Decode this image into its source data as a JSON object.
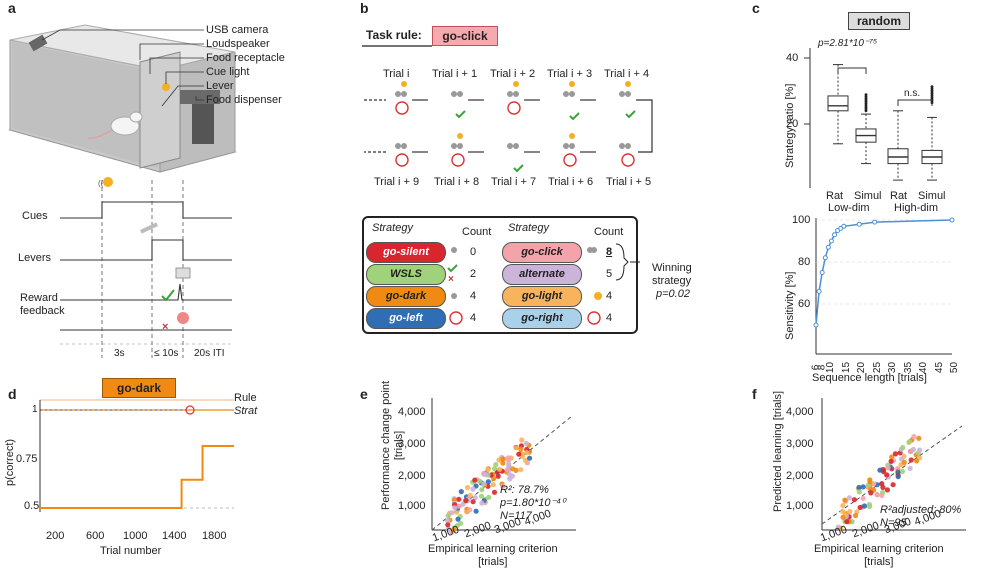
{
  "panel_labels": [
    "a",
    "b",
    "c",
    "d",
    "e",
    "f"
  ],
  "panel_a": {
    "apparatus_labels": [
      "USB camera",
      "Loudspeaker",
      "Food receptacle",
      "Cue light",
      "Lever",
      "Food dispenser"
    ],
    "timeline_labels": [
      "Cues",
      "Levers",
      "Reward",
      "feedback"
    ],
    "durations": [
      "3s",
      "≤ 10s",
      "20s ITI"
    ]
  },
  "panel_b": {
    "task_rule_label": "Task rule:",
    "task_rule": "go-click",
    "trials_top": [
      "Trial i",
      "Trial i + 1",
      "Trial i + 2",
      "Trial i + 3",
      "Trial i + 4"
    ],
    "trials_bottom": [
      "Trial i + 9",
      "Trial i + 8",
      "Trial i + 7",
      "Trial i + 6",
      "Trial i + 5"
    ],
    "legend": {
      "strategy_header": "Strategy",
      "count_header": "Count",
      "left": [
        {
          "name": "go-silent",
          "count": "0",
          "color": "#d9262e"
        },
        {
          "name": "WSLS",
          "count": "2",
          "color": "#9fd27a"
        },
        {
          "name": "go-dark",
          "count": "4",
          "color": "#f08a12"
        },
        {
          "name": "go-left",
          "count": "4",
          "color": "#2f6db5"
        }
      ],
      "right": [
        {
          "name": "go-click",
          "count": "8",
          "color": "#f5a3aa"
        },
        {
          "name": "alternate",
          "count": "5",
          "color": "#cbb3da"
        },
        {
          "name": "go-light",
          "count": "4",
          "color": "#f8b45c"
        },
        {
          "name": "go-right",
          "count": "4",
          "color": "#a9d2ea"
        }
      ],
      "winning_label": [
        "Winning",
        "strategy"
      ],
      "winning_p": "p=0.02"
    }
  },
  "panel_c": {
    "title": "random",
    "box": {
      "ylabel": "Strategy ratio [%]",
      "yticks": [
        "40",
        "20"
      ],
      "pvalue": "p=2.81*10⁻⁷⁵",
      "ns": "n.s.",
      "groups": [
        "Rat",
        "Simul",
        "Rat",
        "Simul"
      ],
      "group_labels": [
        "Low-dim",
        "High-dim"
      ],
      "boxes": [
        {
          "q1": 24,
          "median": 25.5,
          "q3": 28.5,
          "whisker_low": 14,
          "whisker_high": 38
        },
        {
          "q1": 14.5,
          "median": 16.5,
          "q3": 18.5,
          "whisker_low": 8,
          "whisker_high": 23
        },
        {
          "q1": 8,
          "median": 10,
          "q3": 12.5,
          "whisker_low": 3,
          "whisker_high": 24
        },
        {
          "q1": 8,
          "median": 10,
          "q3": 12,
          "whisker_low": 3,
          "whisker_high": 22
        }
      ]
    },
    "sensitivity": {
      "ylabel": "Sensitivity [%]",
      "xlabel": "Sequence length [trials]",
      "yticks": [
        "100",
        "80",
        "60"
      ],
      "xticks": [
        "6",
        "8",
        "10",
        "15",
        "20",
        "25",
        "30",
        "35",
        "40",
        "45",
        "50"
      ]
    }
  },
  "panel_d": {
    "title": "go-dark",
    "legend": [
      "Rule",
      "Strat"
    ],
    "ylabel": "p(correct)",
    "xlabel": "Trial number",
    "yticks": [
      "0.75",
      "0.5"
    ],
    "xticks": [
      "200",
      "600",
      "1000",
      "1400",
      "1800"
    ],
    "y_top_tick": "1"
  },
  "panel_e": {
    "ylabel": [
      "Performance change point",
      "[trials]"
    ],
    "xlabel": [
      "Empirical learning criterion",
      "[trials]"
    ],
    "yticks": [
      "4,000",
      "3,000",
      "2,000",
      "1,000"
    ],
    "xticks": [
      "1,000",
      "2,000",
      "3,000",
      "4,000"
    ],
    "stats": [
      "R²: 78.7%",
      "p=1.80*10⁻⁴⁰",
      "N=117"
    ]
  },
  "panel_f": {
    "ylabel": "Predicted learning [trials]",
    "xlabel": [
      "Empirical learning criterion",
      "[trials]"
    ],
    "yticks": [
      "4,000",
      "3,000",
      "2,000",
      "1,000"
    ],
    "xticks": [
      "1,000",
      "2,000",
      "3,000",
      "4,000"
    ],
    "stats": [
      "R²adjusted: 80%",
      "N=95"
    ]
  },
  "chart_data": [
    {
      "type": "line",
      "title": "go-dark",
      "xlabel": "Trial number",
      "ylabel": "p(correct)",
      "x": [
        50,
        1400,
        1400,
        1600,
        1600,
        1900
      ],
      "series": [
        {
          "name": "Strat",
          "values": [
            0.5,
            0.5,
            0.65,
            0.65,
            0.83,
            0.83
          ]
        }
      ],
      "ylim": [
        0.45,
        1.05
      ],
      "xlim": [
        50,
        1900
      ]
    },
    {
      "type": "line",
      "xlabel": "Sequence length [trials]",
      "ylabel": "Sensitivity [%]",
      "x": [
        6,
        7,
        8,
        9,
        10,
        11,
        12,
        13,
        14,
        15,
        20,
        25,
        50
      ],
      "values": [
        50,
        66,
        75,
        82,
        87,
        90,
        93,
        95,
        96,
        97,
        98,
        99,
        100
      ]
    },
    {
      "type": "scatter",
      "xlabel": "Empirical learning criterion [trials]",
      "ylabel": "Performance change point [trials]"
    }
  ]
}
